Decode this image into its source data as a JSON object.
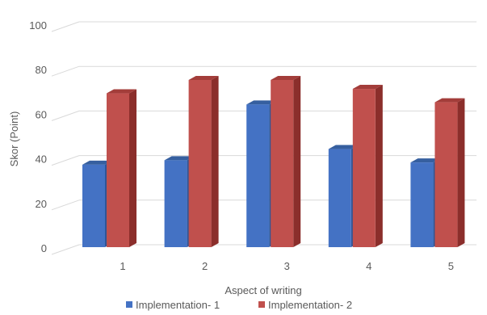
{
  "chart_data": {
    "type": "bar",
    "categories": [
      "1",
      "2",
      "3",
      "4",
      "5"
    ],
    "series": [
      {
        "name": "Implementation- 1",
        "values": [
          37,
          39,
          64,
          44,
          38
        ]
      },
      {
        "name": "Implementation- 2",
        "values": [
          69,
          75,
          75,
          71,
          65
        ]
      }
    ],
    "xlabel": "Aspect of writing",
    "ylabel": "Skor (Point)",
    "ylim": [
      0,
      100
    ],
    "yticks": [
      "0",
      "20",
      "40",
      "60",
      "80",
      "100"
    ],
    "grid": true,
    "legend_position": "bottom",
    "style": "3d-clustered-column",
    "colors": {
      "series": [
        "#4472c4",
        "#c0504d"
      ],
      "series_side": [
        "#2f5597",
        "#8b2e2b"
      ],
      "series_top": [
        "#365f9f",
        "#a33d3a"
      ],
      "grid": "#d9d9d9",
      "text": "#595959"
    }
  }
}
